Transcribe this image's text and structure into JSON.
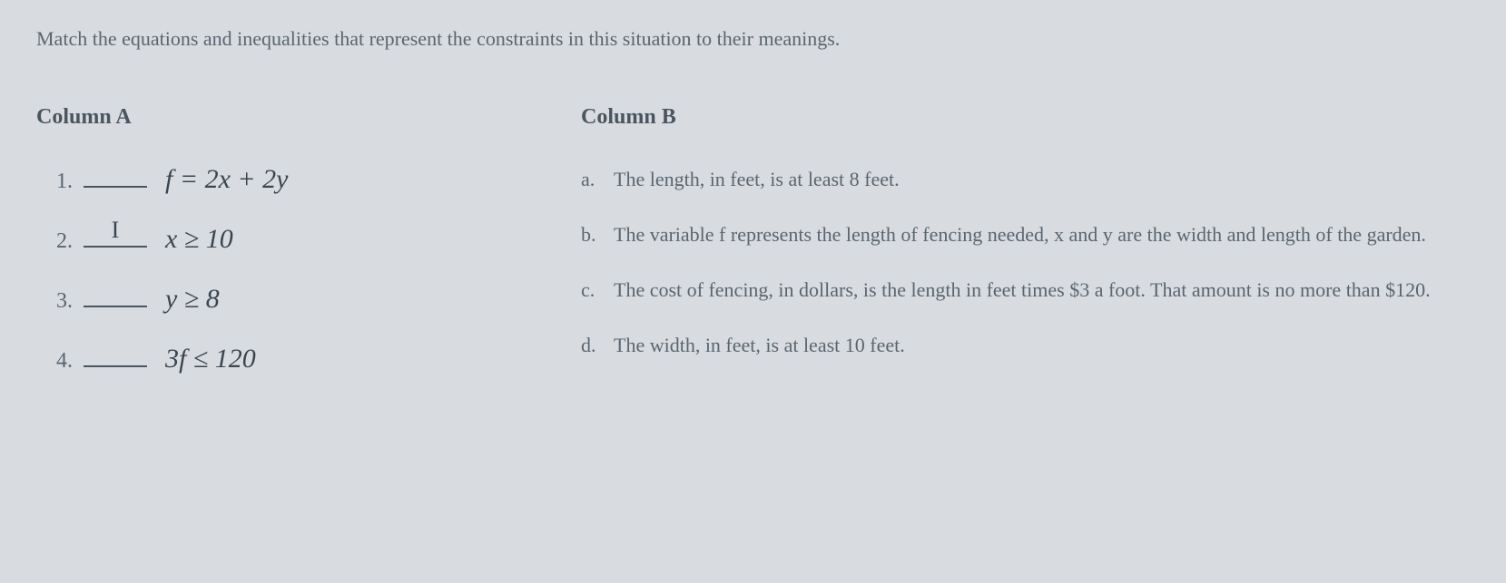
{
  "instruction": "Match the equations and inequalities that represent the constraints in this situation to their meanings.",
  "columnA": {
    "header": "Column A",
    "items": [
      {
        "num": "1.",
        "answer": "",
        "equation": "f = 2x + 2y"
      },
      {
        "num": "2.",
        "answer": "I",
        "equation": "x ≥ 10"
      },
      {
        "num": "3.",
        "answer": "",
        "equation": "y ≥ 8"
      },
      {
        "num": "4.",
        "answer": "",
        "equation": "3f ≤ 120"
      }
    ]
  },
  "columnB": {
    "header": "Column B",
    "options": [
      {
        "letter": "a.",
        "text": "The length, in feet, is at least 8 feet."
      },
      {
        "letter": "b.",
        "text": "The variable f represents the length of fencing needed, x and y are the width and length of the garden."
      },
      {
        "letter": "c.",
        "text": "The cost of fencing, in dollars, is the length in feet times $3 a foot. That amount is no more than $120."
      },
      {
        "letter": "d.",
        "text": "The width, in feet, is at least 10 feet."
      }
    ]
  },
  "colors": {
    "background": "#d8dce0",
    "text_primary": "#4a5560",
    "text_secondary": "#5a6570",
    "equation": "#3a4550"
  },
  "typography": {
    "instruction_fontsize": 22,
    "header_fontsize": 24,
    "item_fontsize": 24,
    "equation_fontsize": 30,
    "option_fontsize": 22
  }
}
